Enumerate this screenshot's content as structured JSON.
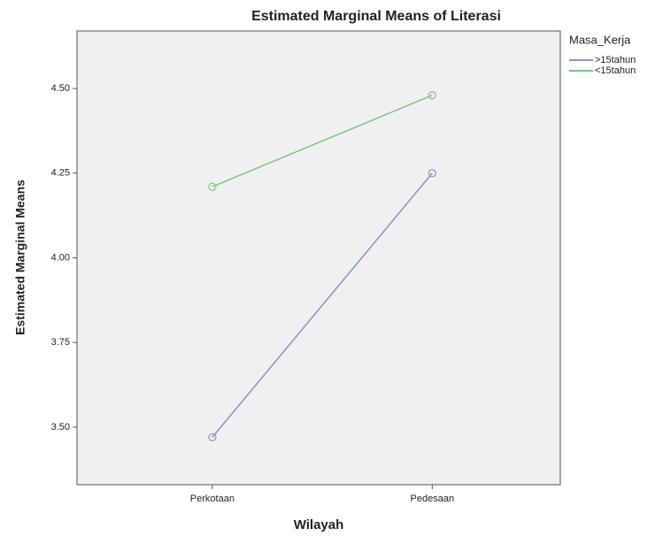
{
  "chart_data": {
    "type": "line",
    "title": "Estimated Marginal Means of Literasi",
    "x_label": "Wilayah",
    "y_label": "Estimated Marginal Means",
    "categories": [
      "Perkotaan",
      "Pedesaan"
    ],
    "legend_title": "Masa_Kerja",
    "series": [
      {
        "name": ">15tahun",
        "color": "#8c8fd0",
        "values": [
          3.47,
          4.25
        ]
      },
      {
        "name": "<15tahun",
        "color": "#7ac87a",
        "values": [
          4.21,
          4.48
        ]
      }
    ],
    "ylim": [
      3.33,
      4.67
    ],
    "yticks": [
      {
        "value": 3.5,
        "label": "3.50"
      },
      {
        "value": 3.75,
        "label": "3.75"
      },
      {
        "value": 4.0,
        "label": "4.00"
      },
      {
        "value": 4.25,
        "label": "4.25"
      },
      {
        "value": 4.5,
        "label": "4.50"
      }
    ]
  }
}
